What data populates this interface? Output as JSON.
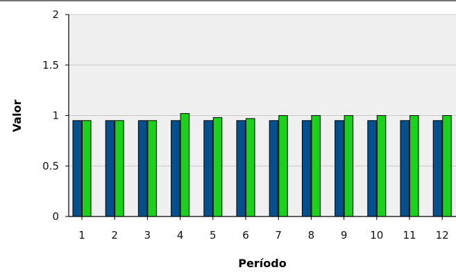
{
  "chart_data": {
    "type": "bar",
    "xlabel": "Período",
    "ylabel": "Valor",
    "categories": [
      "1",
      "2",
      "3",
      "4",
      "5",
      "6",
      "7",
      "8",
      "9",
      "10",
      "11",
      "12"
    ],
    "series": [
      {
        "values": [
          0.95,
          0.95,
          0.95,
          0.95,
          0.95,
          0.95,
          0.95,
          0.95,
          0.95,
          0.95,
          0.95,
          0.95
        ]
      },
      {
        "values": [
          0.95,
          0.95,
          0.95,
          1.02,
          0.98,
          0.97,
          1.0,
          1.0,
          1.0,
          1.0,
          1.0,
          1.0
        ]
      }
    ],
    "ylim": [
      0,
      2
    ],
    "yticks": [
      "0",
      "0.5",
      "1",
      "1.5",
      "2"
    ],
    "grid": true,
    "legend": "none"
  },
  "colors": {
    "series": [
      "#03508f",
      "#19d219"
    ],
    "plot_background": "#f0f0f0",
    "gridline": "#c8c8c8",
    "axis": "#000000"
  }
}
